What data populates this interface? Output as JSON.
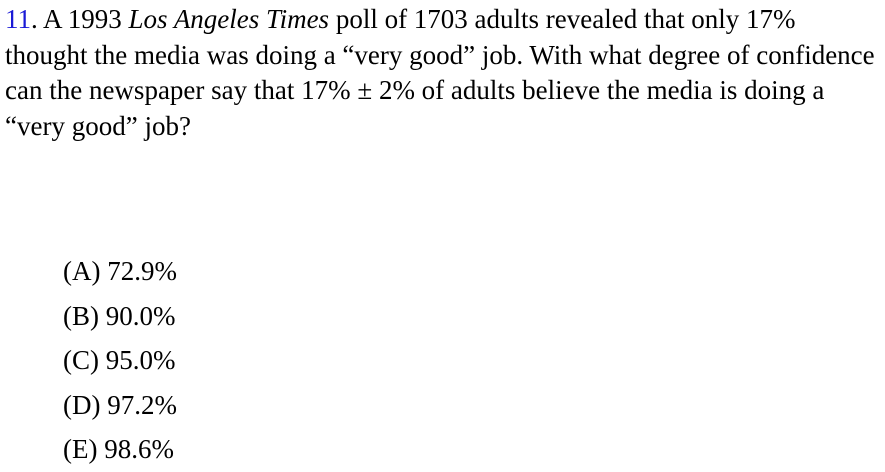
{
  "question": {
    "number": "11",
    "number_suffix": ". ",
    "text_before_italic": "A 1993 ",
    "italic": "Los Angeles Times",
    "text_after_italic": " poll of 1703 adults revealed that only 17% thought the media was doing a “very good” job. With what degree of confidence can the newspaper say that 17% ± 2% of adults believe the media is doing a “very good” job?",
    "number_color": "#1a1ad6"
  },
  "choices": [
    {
      "label": "(A)",
      "value": "72.9%"
    },
    {
      "label": "(B)",
      "value": "90.0%"
    },
    {
      "label": "(C)",
      "value": "95.0%"
    },
    {
      "label": "(D)",
      "value": "97.2%"
    },
    {
      "label": "(E)",
      "value": "98.6%"
    }
  ]
}
